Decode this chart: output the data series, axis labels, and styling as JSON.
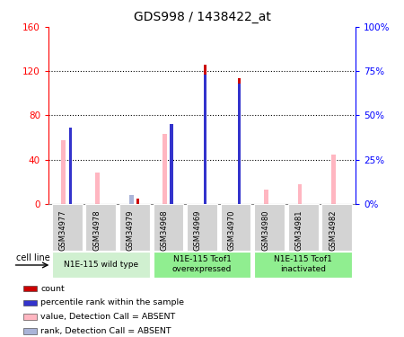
{
  "title": "GDS998 / 1438422_at",
  "samples": [
    "GSM34977",
    "GSM34978",
    "GSM34979",
    "GSM34968",
    "GSM34969",
    "GSM34970",
    "GSM34980",
    "GSM34981",
    "GSM34982"
  ],
  "count_values": [
    0,
    0,
    5,
    0,
    126,
    114,
    0,
    0,
    0
  ],
  "percentile_rank_values": [
    43,
    0,
    0,
    45,
    73,
    68,
    0,
    0,
    0
  ],
  "absent_value_values": [
    58,
    28,
    8,
    63,
    0,
    0,
    13,
    18,
    45
  ],
  "absent_rank_values": [
    0,
    0,
    8,
    0,
    0,
    0,
    0,
    0,
    0
  ],
  "left_ylim": [
    0,
    160
  ],
  "right_ylim": [
    0,
    100
  ],
  "left_yticks": [
    0,
    40,
    80,
    120,
    160
  ],
  "right_yticks": [
    0,
    25,
    50,
    75,
    100
  ],
  "right_yticklabels": [
    "0%",
    "25%",
    "50%",
    "75%",
    "100%"
  ],
  "absent_value_color": "#ffb6c1",
  "absent_rank_color": "#aab4d8",
  "count_color": "#cc0000",
  "percentile_color": "#3333cc",
  "cell_line_label": "cell line",
  "group_configs": [
    {
      "indices": [
        0,
        1,
        2
      ],
      "label": "N1E-115 wild type",
      "color": "#d0f0d0"
    },
    {
      "indices": [
        3,
        4,
        5
      ],
      "label": "N1E-115 Tcof1\noverexpressed",
      "color": "#90ee90"
    },
    {
      "indices": [
        6,
        7,
        8
      ],
      "label": "N1E-115 Tcof1\ninactivated",
      "color": "#90ee90"
    }
  ],
  "legend_items": [
    {
      "color": "#cc0000",
      "label": "count"
    },
    {
      "color": "#3333cc",
      "label": "percentile rank within the sample"
    },
    {
      "color": "#ffb6c1",
      "label": "value, Detection Call = ABSENT"
    },
    {
      "color": "#aab4d8",
      "label": "rank, Detection Call = ABSENT"
    }
  ]
}
